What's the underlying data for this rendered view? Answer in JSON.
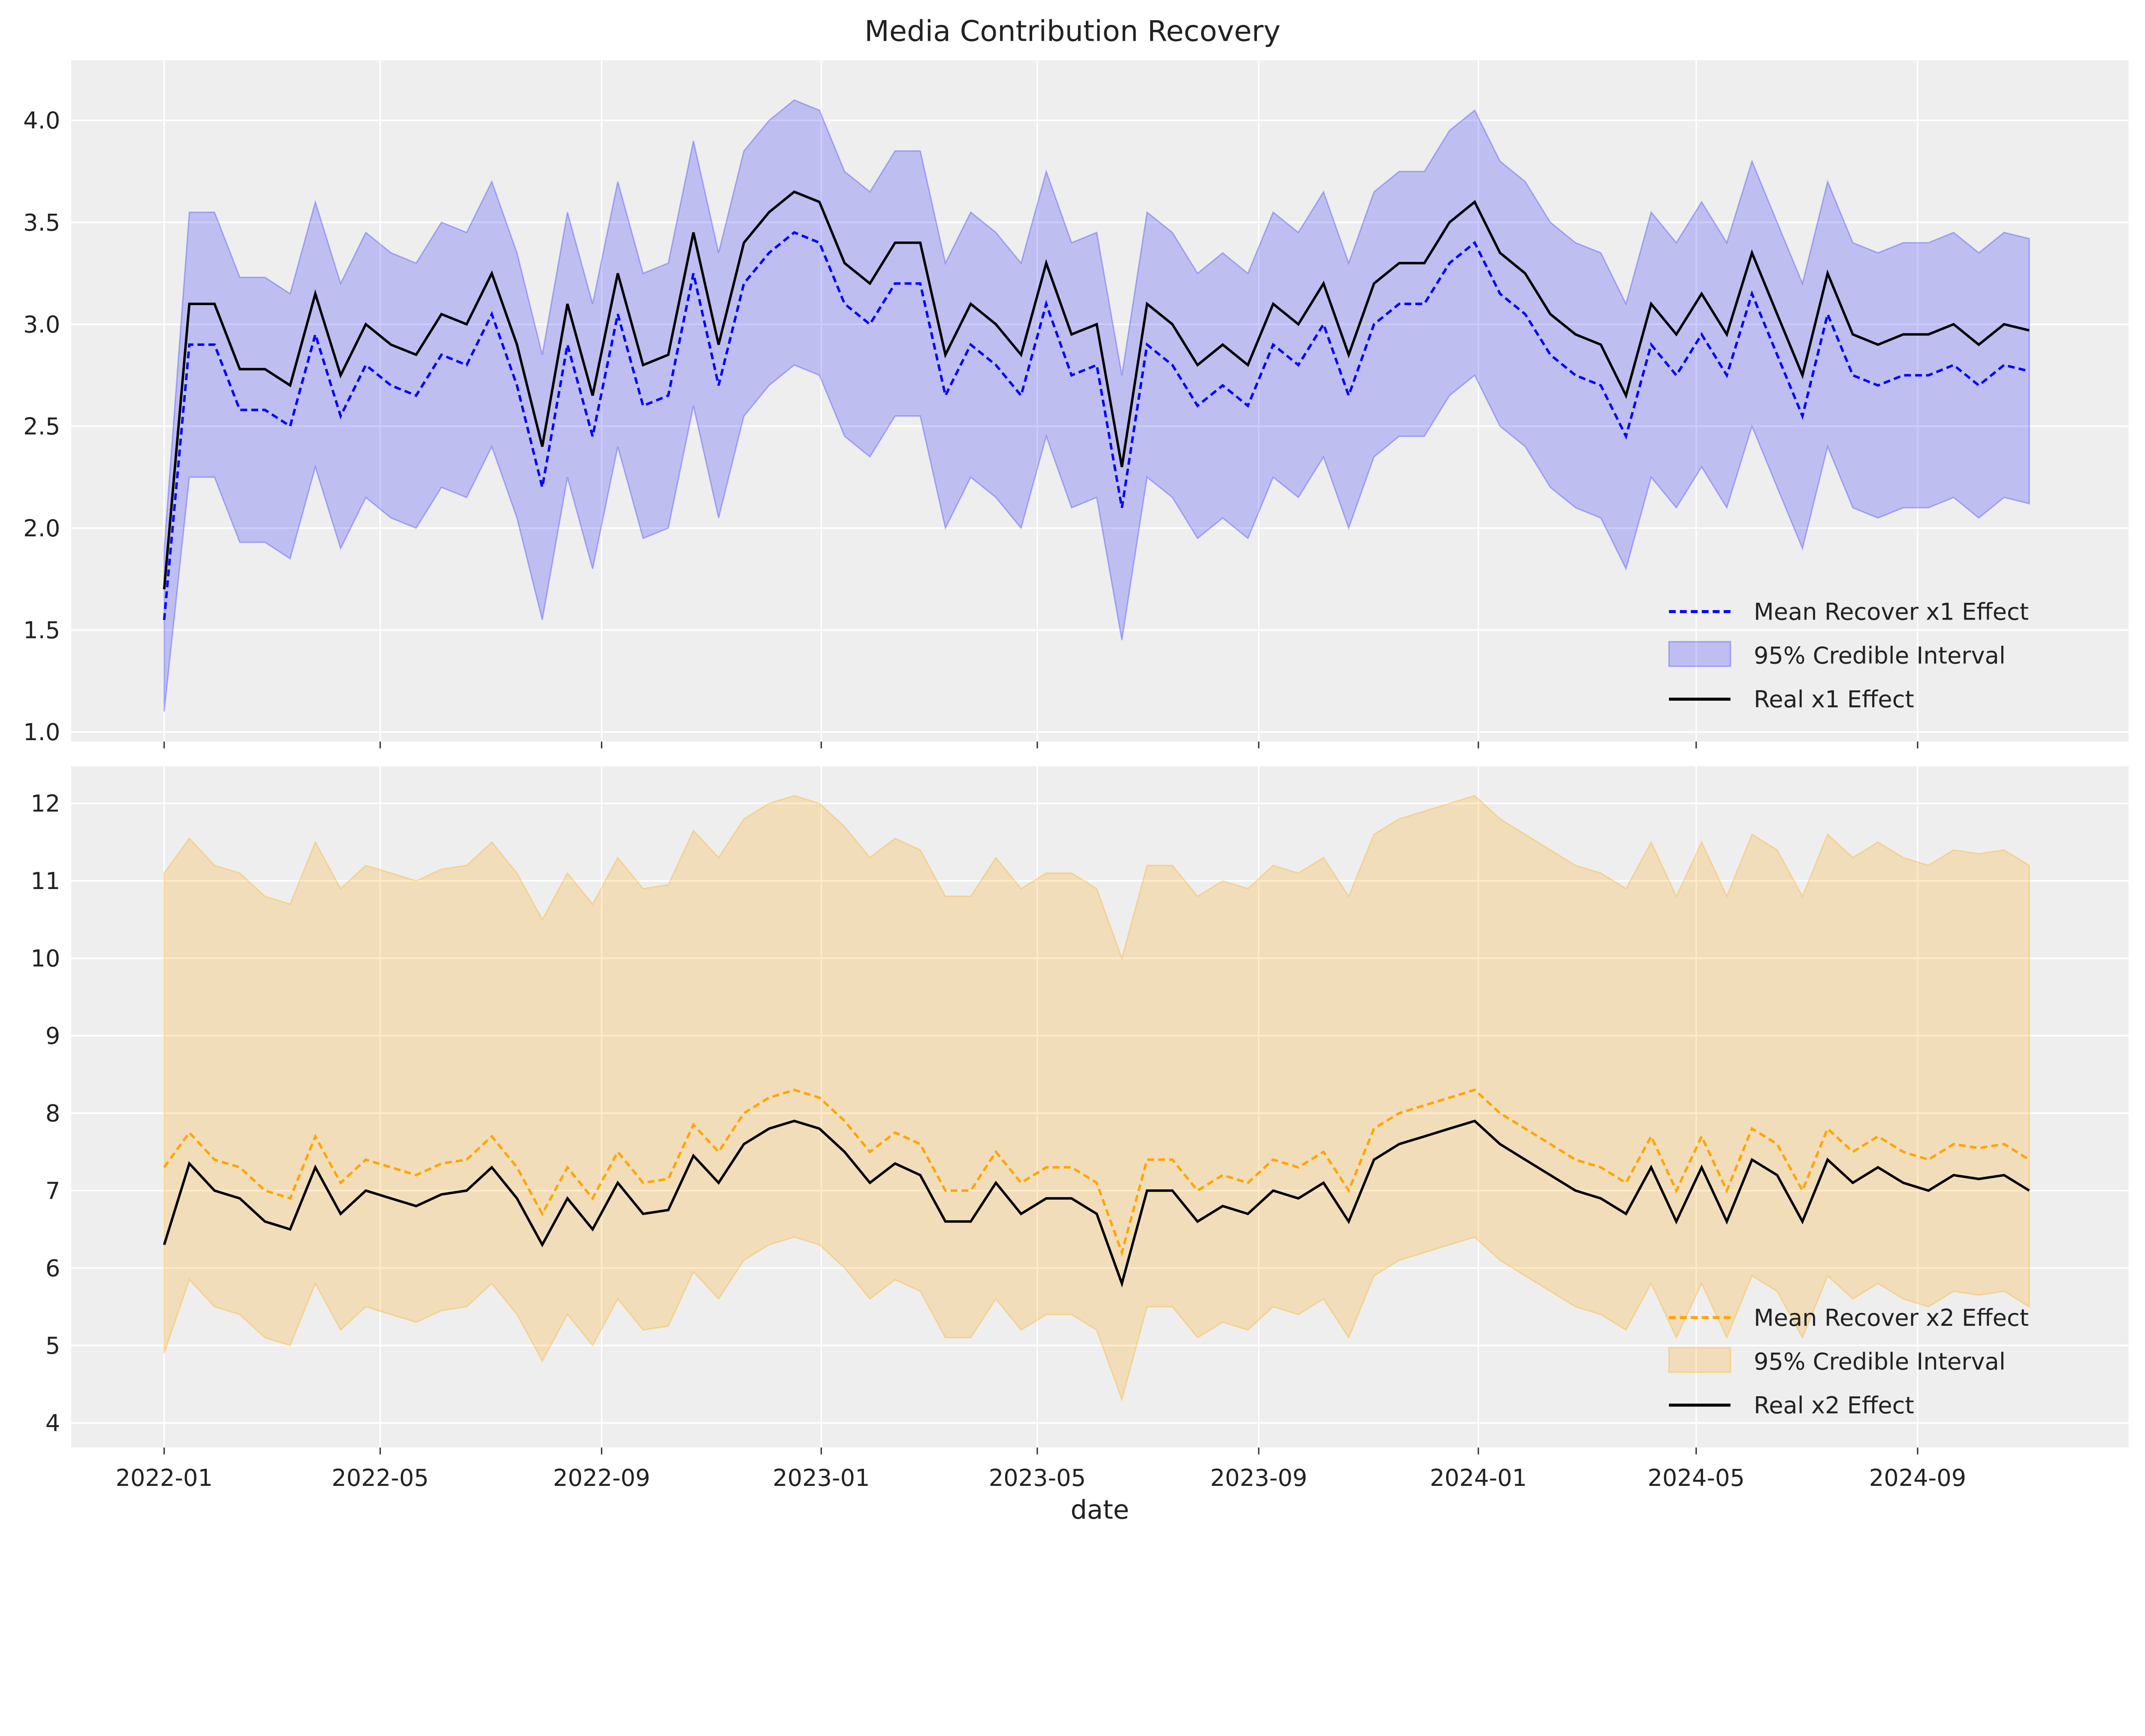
{
  "title": "Media Contribution Recovery",
  "chart_data": [
    {
      "type": "line",
      "panel": "top",
      "xlabel": "",
      "ylabel": "",
      "ylim": [
        0.95,
        4.3
      ],
      "yticks": [
        "1.0",
        "1.5",
        "2.0",
        "2.5",
        "3.0",
        "3.5",
        "4.0"
      ],
      "grid": true,
      "legend_placement": "lower-right",
      "colors": {
        "mean": "#0000ff",
        "band": "#0000ff",
        "real": "#000000"
      },
      "x": [
        "2022-01-01",
        "2022-01-15",
        "2022-01-29",
        "2022-02-12",
        "2022-02-26",
        "2022-03-12",
        "2022-03-26",
        "2022-04-09",
        "2022-04-23",
        "2022-05-07",
        "2022-05-21",
        "2022-06-04",
        "2022-06-18",
        "2022-07-02",
        "2022-07-16",
        "2022-07-30",
        "2022-08-13",
        "2022-08-27",
        "2022-09-10",
        "2022-09-24",
        "2022-10-08",
        "2022-10-22",
        "2022-11-05",
        "2022-11-19",
        "2022-12-03",
        "2022-12-17",
        "2022-12-31",
        "2023-01-14",
        "2023-01-28",
        "2023-02-11",
        "2023-02-25",
        "2023-03-11",
        "2023-03-25",
        "2023-04-08",
        "2023-04-22",
        "2023-05-06",
        "2023-05-20",
        "2023-06-03",
        "2023-06-17",
        "2023-07-01",
        "2023-07-15",
        "2023-07-29",
        "2023-08-12",
        "2023-08-26",
        "2023-09-09",
        "2023-09-23",
        "2023-10-07",
        "2023-10-21",
        "2023-11-04",
        "2023-11-18",
        "2023-12-02",
        "2023-12-16",
        "2023-12-30",
        "2024-01-13",
        "2024-01-27",
        "2024-02-10",
        "2024-02-24",
        "2024-03-09",
        "2024-03-23",
        "2024-04-06",
        "2024-04-20",
        "2024-05-04",
        "2024-05-18",
        "2024-06-01",
        "2024-06-15",
        "2024-06-29",
        "2024-07-13",
        "2024-07-27",
        "2024-08-10",
        "2024-08-24",
        "2024-09-07",
        "2024-09-21",
        "2024-10-05",
        "2024-10-19",
        "2024-11-02"
      ],
      "series": [
        {
          "name": "Mean Recover x1 Effect",
          "style": "dashed",
          "values": [
            1.55,
            2.9,
            2.9,
            2.58,
            2.58,
            2.5,
            2.95,
            2.55,
            2.8,
            2.7,
            2.65,
            2.85,
            2.8,
            3.05,
            2.7,
            2.2,
            2.9,
            2.45,
            3.05,
            2.6,
            2.65,
            3.25,
            2.7,
            3.2,
            3.35,
            3.45,
            3.4,
            3.1,
            3.0,
            3.2,
            3.2,
            2.65,
            2.9,
            2.8,
            2.65,
            3.1,
            2.75,
            2.8,
            2.1,
            2.9,
            2.8,
            2.6,
            2.7,
            2.6,
            2.9,
            2.8,
            3.0,
            2.65,
            3.0,
            3.1,
            3.1,
            3.3,
            3.4,
            3.15,
            3.05,
            2.85,
            2.75,
            2.7,
            2.45,
            2.9,
            2.75,
            2.95,
            2.75,
            3.15,
            2.85,
            2.55,
            3.05,
            2.75,
            2.7,
            2.75,
            2.75,
            2.8,
            2.7,
            2.8,
            2.77
          ]
        },
        {
          "name": "95% Credible Interval",
          "style": "band",
          "upper": [
            1.9,
            3.55,
            3.55,
            3.23,
            3.23,
            3.15,
            3.6,
            3.2,
            3.45,
            3.35,
            3.3,
            3.5,
            3.45,
            3.7,
            3.35,
            2.85,
            3.55,
            3.1,
            3.7,
            3.25,
            3.3,
            3.9,
            3.35,
            3.85,
            4.0,
            4.1,
            4.05,
            3.75,
            3.65,
            3.85,
            3.85,
            3.3,
            3.55,
            3.45,
            3.3,
            3.75,
            3.4,
            3.45,
            2.75,
            3.55,
            3.45,
            3.25,
            3.35,
            3.25,
            3.55,
            3.45,
            3.65,
            3.3,
            3.65,
            3.75,
            3.75,
            3.95,
            4.05,
            3.8,
            3.7,
            3.5,
            3.4,
            3.35,
            3.1,
            3.55,
            3.4,
            3.6,
            3.4,
            3.8,
            3.5,
            3.2,
            3.7,
            3.4,
            3.35,
            3.4,
            3.4,
            3.45,
            3.35,
            3.45,
            3.42
          ],
          "lower": [
            1.1,
            2.25,
            2.25,
            1.93,
            1.93,
            1.85,
            2.3,
            1.9,
            2.15,
            2.05,
            2.0,
            2.2,
            2.15,
            2.4,
            2.05,
            1.55,
            2.25,
            1.8,
            2.4,
            1.95,
            2.0,
            2.6,
            2.05,
            2.55,
            2.7,
            2.8,
            2.75,
            2.45,
            2.35,
            2.55,
            2.55,
            2.0,
            2.25,
            2.15,
            2.0,
            2.45,
            2.1,
            2.15,
            1.45,
            2.25,
            2.15,
            1.95,
            2.05,
            1.95,
            2.25,
            2.15,
            2.35,
            2.0,
            2.35,
            2.45,
            2.45,
            2.65,
            2.75,
            2.5,
            2.4,
            2.2,
            2.1,
            2.05,
            1.8,
            2.25,
            2.1,
            2.3,
            2.1,
            2.5,
            2.2,
            1.9,
            2.4,
            2.1,
            2.05,
            2.1,
            2.1,
            2.15,
            2.05,
            2.15,
            2.12
          ]
        },
        {
          "name": "Real x1 Effect",
          "style": "solid",
          "values": [
            1.7,
            3.1,
            3.1,
            2.78,
            2.78,
            2.7,
            3.15,
            2.75,
            3.0,
            2.9,
            2.85,
            3.05,
            3.0,
            3.25,
            2.9,
            2.4,
            3.1,
            2.65,
            3.25,
            2.8,
            2.85,
            3.45,
            2.9,
            3.4,
            3.55,
            3.65,
            3.6,
            3.3,
            3.2,
            3.4,
            3.4,
            2.85,
            3.1,
            3.0,
            2.85,
            3.3,
            2.95,
            3.0,
            2.3,
            3.1,
            3.0,
            2.8,
            2.9,
            2.8,
            3.1,
            3.0,
            3.2,
            2.85,
            3.2,
            3.3,
            3.3,
            3.5,
            3.6,
            3.35,
            3.25,
            3.05,
            2.95,
            2.9,
            2.65,
            3.1,
            2.95,
            3.15,
            2.95,
            3.35,
            3.05,
            2.75,
            3.25,
            2.95,
            2.9,
            2.95,
            2.95,
            3.0,
            2.9,
            3.0,
            2.97
          ]
        }
      ]
    },
    {
      "type": "line",
      "panel": "bottom",
      "xlabel": "date",
      "ylabel": "",
      "ylim": [
        3.7,
        12.5
      ],
      "yticks": [
        "4",
        "5",
        "6",
        "7",
        "8",
        "9",
        "10",
        "11",
        "12"
      ],
      "xticks": [
        "2022-01",
        "2022-05",
        "2022-09",
        "2023-01",
        "2023-05",
        "2023-09",
        "2024-01",
        "2024-05",
        "2024-09"
      ],
      "grid": true,
      "legend_placement": "lower-right",
      "colors": {
        "mean": "#ffa500",
        "band": "#ffa500",
        "real": "#000000"
      },
      "series": [
        {
          "name": "Mean Recover x2 Effect",
          "style": "dashed",
          "values": [
            7.3,
            7.75,
            7.4,
            7.3,
            7.0,
            6.9,
            7.7,
            7.1,
            7.4,
            7.3,
            7.2,
            7.35,
            7.4,
            7.7,
            7.3,
            6.7,
            7.3,
            6.9,
            7.5,
            7.1,
            7.15,
            7.85,
            7.5,
            8.0,
            8.2,
            8.3,
            8.2,
            7.9,
            7.5,
            7.75,
            7.6,
            7.0,
            7.0,
            7.5,
            7.1,
            7.3,
            7.3,
            7.1,
            6.2,
            7.4,
            7.4,
            7.0,
            7.2,
            7.1,
            7.4,
            7.3,
            7.5,
            7.0,
            7.8,
            8.0,
            8.1,
            8.2,
            8.3,
            8.0,
            7.8,
            7.6,
            7.4,
            7.3,
            7.1,
            7.7,
            7.0,
            7.7,
            7.0,
            7.8,
            7.6,
            7.0,
            7.8,
            7.5,
            7.7,
            7.5,
            7.4,
            7.6,
            7.55,
            7.6,
            7.4
          ]
        },
        {
          "name": "95% Credible Interval",
          "style": "band",
          "upper": [
            11.1,
            11.55,
            11.2,
            11.1,
            10.8,
            10.7,
            11.5,
            10.9,
            11.2,
            11.1,
            11.0,
            11.15,
            11.2,
            11.5,
            11.1,
            10.5,
            11.1,
            10.7,
            11.3,
            10.9,
            10.95,
            11.65,
            11.3,
            11.8,
            12.0,
            12.1,
            12.0,
            11.7,
            11.3,
            11.55,
            11.4,
            10.8,
            10.8,
            11.3,
            10.9,
            11.1,
            11.1,
            10.9,
            10.0,
            11.2,
            11.2,
            10.8,
            11.0,
            10.9,
            11.2,
            11.1,
            11.3,
            10.8,
            11.6,
            11.8,
            11.9,
            12.0,
            12.1,
            11.8,
            11.6,
            11.4,
            11.2,
            11.1,
            10.9,
            11.5,
            10.8,
            11.5,
            10.8,
            11.6,
            11.4,
            10.8,
            11.6,
            11.3,
            11.5,
            11.3,
            11.2,
            11.4,
            11.35,
            11.4,
            11.2
          ],
          "lower": [
            4.9,
            5.85,
            5.5,
            5.4,
            5.1,
            5.0,
            5.8,
            5.2,
            5.5,
            5.4,
            5.3,
            5.45,
            5.5,
            5.8,
            5.4,
            4.8,
            5.4,
            5.0,
            5.6,
            5.2,
            5.25,
            5.95,
            5.6,
            6.1,
            6.3,
            6.4,
            6.3,
            6.0,
            5.6,
            5.85,
            5.7,
            5.1,
            5.1,
            5.6,
            5.2,
            5.4,
            5.4,
            5.2,
            4.3,
            5.5,
            5.5,
            5.1,
            5.3,
            5.2,
            5.5,
            5.4,
            5.6,
            5.1,
            5.9,
            6.1,
            6.2,
            6.3,
            6.4,
            6.1,
            5.9,
            5.7,
            5.5,
            5.4,
            5.2,
            5.8,
            5.1,
            5.8,
            5.1,
            5.9,
            5.7,
            5.1,
            5.9,
            5.6,
            5.8,
            5.6,
            5.5,
            5.7,
            5.65,
            5.7,
            5.5
          ]
        },
        {
          "name": "Real x2 Effect",
          "style": "solid",
          "values": [
            6.3,
            7.35,
            7.0,
            6.9,
            6.6,
            6.5,
            7.3,
            6.7,
            7.0,
            6.9,
            6.8,
            6.95,
            7.0,
            7.3,
            6.9,
            6.3,
            6.9,
            6.5,
            7.1,
            6.7,
            6.75,
            7.45,
            7.1,
            7.6,
            7.8,
            7.9,
            7.8,
            7.5,
            7.1,
            7.35,
            7.2,
            6.6,
            6.6,
            7.1,
            6.7,
            6.9,
            6.9,
            6.7,
            5.8,
            7.0,
            7.0,
            6.6,
            6.8,
            6.7,
            7.0,
            6.9,
            7.1,
            6.6,
            7.4,
            7.6,
            7.7,
            7.8,
            7.9,
            7.6,
            7.4,
            7.2,
            7.0,
            6.9,
            6.7,
            7.3,
            6.6,
            7.3,
            6.6,
            7.4,
            7.2,
            6.6,
            7.4,
            7.1,
            7.3,
            7.1,
            7.0,
            7.2,
            7.15,
            7.2,
            7.0
          ]
        }
      ]
    }
  ]
}
